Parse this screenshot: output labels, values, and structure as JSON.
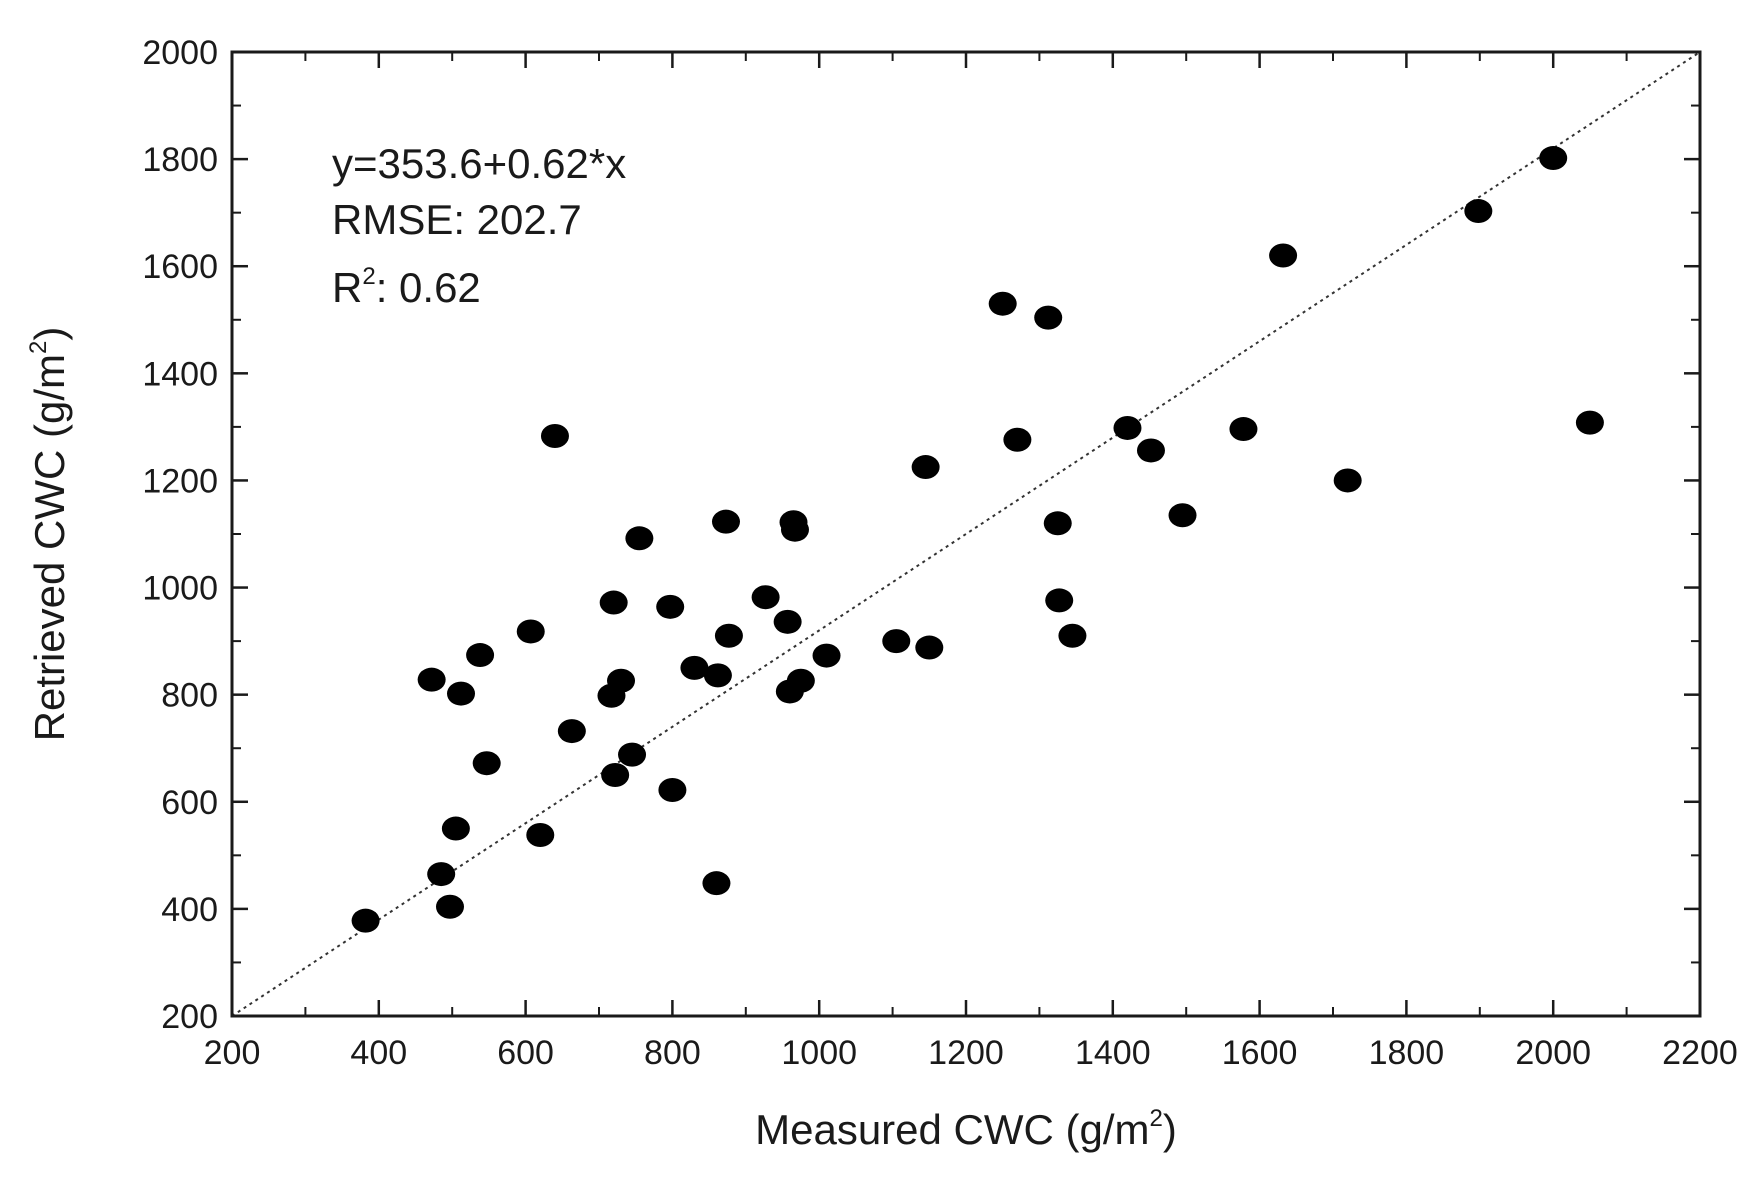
{
  "chart_data": {
    "type": "scatter",
    "title": "",
    "xlabel": {
      "text": "Measured CWC (g/m",
      "sup": "2",
      "close": ")"
    },
    "ylabel": {
      "text": "Retrieved CWC (g/m",
      "sup": "2",
      "close": ")"
    },
    "xlim": [
      200,
      2200
    ],
    "ylim": [
      200,
      2000
    ],
    "x_ticks": [
      200,
      400,
      600,
      800,
      1000,
      1200,
      1400,
      1600,
      1800,
      2000,
      2200
    ],
    "y_ticks": [
      200,
      400,
      600,
      800,
      1000,
      1200,
      1400,
      1600,
      1800,
      2000
    ],
    "minor_x_step": 100,
    "minor_y_step": 100,
    "grid": false,
    "legend": "none",
    "reference_line": {
      "type": "1:1",
      "style": "dotted",
      "from": [
        200,
        200
      ],
      "to": [
        2200,
        2000
      ]
    },
    "annotations": {
      "equation": "y=353.6+0.62*x",
      "rmse": "RMSE: 202.7",
      "r2_prefix": "R",
      "r2_sup": "2",
      "r2_value": ": 0.62"
    },
    "marker_color": "#000000",
    "points": [
      {
        "x": 382,
        "y": 378
      },
      {
        "x": 472,
        "y": 828
      },
      {
        "x": 485,
        "y": 465
      },
      {
        "x": 497,
        "y": 404
      },
      {
        "x": 505,
        "y": 550
      },
      {
        "x": 512,
        "y": 802
      },
      {
        "x": 538,
        "y": 874
      },
      {
        "x": 547,
        "y": 672
      },
      {
        "x": 607,
        "y": 918
      },
      {
        "x": 620,
        "y": 538
      },
      {
        "x": 640,
        "y": 1283
      },
      {
        "x": 663,
        "y": 732
      },
      {
        "x": 717,
        "y": 798
      },
      {
        "x": 720,
        "y": 972
      },
      {
        "x": 722,
        "y": 650
      },
      {
        "x": 730,
        "y": 826
      },
      {
        "x": 745,
        "y": 688
      },
      {
        "x": 755,
        "y": 1092
      },
      {
        "x": 797,
        "y": 964
      },
      {
        "x": 800,
        "y": 622
      },
      {
        "x": 830,
        "y": 850
      },
      {
        "x": 862,
        "y": 836
      },
      {
        "x": 860,
        "y": 448
      },
      {
        "x": 873,
        "y": 1123
      },
      {
        "x": 877,
        "y": 910
      },
      {
        "x": 927,
        "y": 982
      },
      {
        "x": 957,
        "y": 936
      },
      {
        "x": 960,
        "y": 806
      },
      {
        "x": 965,
        "y": 1122
      },
      {
        "x": 967,
        "y": 1108
      },
      {
        "x": 975,
        "y": 826
      },
      {
        "x": 1010,
        "y": 873
      },
      {
        "x": 1105,
        "y": 900
      },
      {
        "x": 1145,
        "y": 1225
      },
      {
        "x": 1150,
        "y": 888
      },
      {
        "x": 1250,
        "y": 1530
      },
      {
        "x": 1270,
        "y": 1276
      },
      {
        "x": 1312,
        "y": 1504
      },
      {
        "x": 1325,
        "y": 1120
      },
      {
        "x": 1327,
        "y": 976
      },
      {
        "x": 1345,
        "y": 910
      },
      {
        "x": 1420,
        "y": 1298
      },
      {
        "x": 1452,
        "y": 1256
      },
      {
        "x": 1495,
        "y": 1135
      },
      {
        "x": 1578,
        "y": 1296
      },
      {
        "x": 1632,
        "y": 1620
      },
      {
        "x": 1720,
        "y": 1200
      },
      {
        "x": 1898,
        "y": 1703
      },
      {
        "x": 2000,
        "y": 1802
      },
      {
        "x": 2050,
        "y": 1308
      }
    ]
  }
}
